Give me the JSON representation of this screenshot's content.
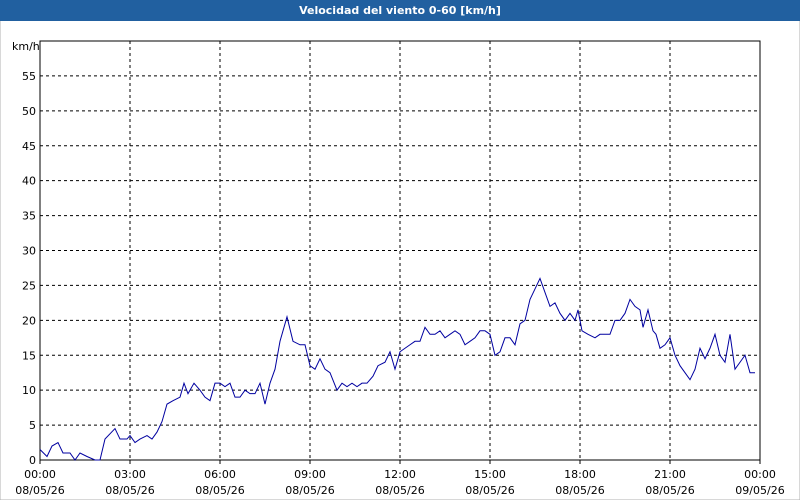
{
  "chart_data": {
    "type": "line",
    "title": "Velocidad del viento 0-60 [km/h]",
    "ylabel": "km/h",
    "xlim": [
      0,
      1440
    ],
    "ylim": [
      0,
      60
    ],
    "yticks": [
      0,
      5,
      10,
      15,
      20,
      25,
      30,
      35,
      40,
      45,
      50,
      55
    ],
    "xticks": [
      {
        "value": 0,
        "label": "00:00"
      },
      {
        "value": 180,
        "label": "03:00"
      },
      {
        "value": 360,
        "label": "06:00"
      },
      {
        "value": 540,
        "label": "09:00"
      },
      {
        "value": 720,
        "label": "12:00"
      },
      {
        "value": 900,
        "label": "15:00"
      },
      {
        "value": 1080,
        "label": "18:00"
      },
      {
        "value": 1260,
        "label": "21:00"
      },
      {
        "value": 1440,
        "label": "00:00"
      }
    ],
    "xtick_dates": [
      "08/05/26",
      "08/05/26",
      "08/05/26",
      "08/05/26",
      "08/05/26",
      "08/05/26",
      "08/05/26",
      "08/05/26",
      "09/05/26"
    ],
    "grid": true,
    "x": [
      0,
      14,
      24,
      36,
      46,
      60,
      70,
      80,
      94,
      110,
      120,
      130,
      150,
      160,
      174,
      180,
      190,
      200,
      214,
      224,
      234,
      244,
      254,
      266,
      280,
      288,
      296,
      308,
      320,
      330,
      340,
      350,
      360,
      370,
      380,
      390,
      400,
      410,
      420,
      430,
      440,
      450,
      460,
      470,
      480,
      494,
      506,
      520,
      530,
      540,
      550,
      560,
      570,
      580,
      594,
      604,
      614,
      624,
      634,
      644,
      654,
      666,
      676,
      690,
      700,
      710,
      720,
      730,
      740,
      750,
      760,
      770,
      780,
      790,
      800,
      810,
      820,
      830,
      840,
      850,
      860,
      870,
      880,
      890,
      900,
      910,
      920,
      930,
      940,
      950,
      960,
      970,
      980,
      990,
      1000,
      1010,
      1020,
      1030,
      1040,
      1050,
      1060,
      1070,
      1076,
      1084,
      1096,
      1110,
      1120,
      1130,
      1140,
      1150,
      1160,
      1170,
      1180,
      1190,
      1200,
      1206,
      1216,
      1226,
      1232,
      1240,
      1250,
      1260,
      1270,
      1280,
      1290,
      1300,
      1310,
      1320,
      1330,
      1340,
      1350,
      1360,
      1370,
      1380,
      1390,
      1400,
      1410,
      1420,
      1430
    ],
    "series": [
      {
        "name": "Velocidad del viento",
        "color": "#0000a0",
        "values": [
          1.5,
          0.5,
          2,
          2.5,
          1,
          1,
          0,
          1,
          0.5,
          0,
          0,
          3,
          4.5,
          3,
          3,
          3.5,
          2.5,
          3,
          3.5,
          3,
          4,
          5.5,
          8,
          8.5,
          9,
          11,
          9.5,
          11,
          10,
          9,
          8.5,
          11,
          11,
          10.5,
          11,
          9,
          9,
          10,
          9.5,
          9.5,
          11,
          8,
          11,
          13,
          17,
          20.5,
          17,
          16.5,
          16.5,
          13.5,
          13,
          14.5,
          13,
          12.5,
          10,
          11,
          10.5,
          11,
          10.5,
          11,
          11,
          12,
          13.5,
          14,
          15.5,
          13,
          15.5,
          16,
          16.5,
          17,
          17,
          19,
          18,
          18,
          18.5,
          17.5,
          18,
          18.5,
          18,
          16.5,
          17,
          17.5,
          18.5,
          18.5,
          18,
          15,
          15.5,
          17.5,
          17.5,
          16.5,
          19.5,
          20,
          23,
          24.5,
          26,
          24,
          22,
          22.5,
          21,
          20,
          21,
          20,
          21.5,
          18.5,
          18,
          17.5,
          18,
          18,
          18,
          20,
          20,
          21,
          23,
          22,
          21.5,
          19,
          21.5,
          18.5,
          18,
          16,
          16.5,
          17.5,
          15,
          13.5,
          12.5,
          11.5,
          13,
          16,
          14.5,
          16,
          18,
          15,
          14,
          18,
          13,
          14,
          15,
          12.5,
          12.5
        ]
      }
    ]
  }
}
